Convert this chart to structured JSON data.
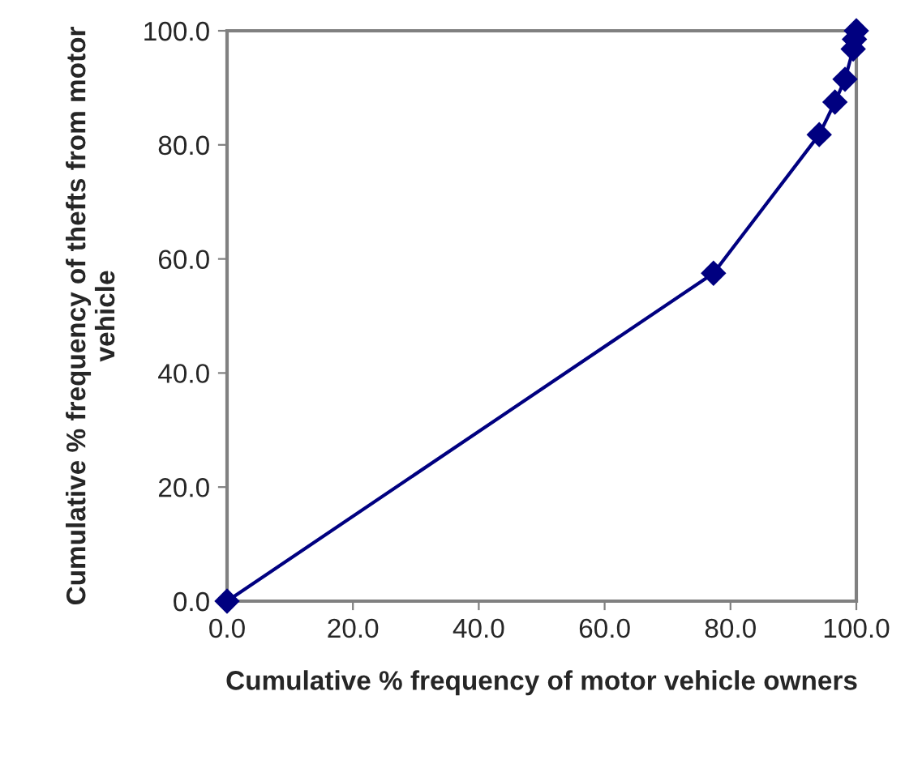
{
  "chart_data": {
    "type": "line",
    "xlabel": "Cumulative % frequency of motor vehicle owners",
    "ylabel": "Cumulative % frequency of thefts from motor vehicle",
    "series": [
      {
        "color": "#000080",
        "x": [
          0,
          77.3,
          94.1,
          96.6,
          98.2,
          99.5,
          99.7,
          100
        ],
        "values": [
          0,
          57.5,
          81.8,
          87.5,
          91.5,
          96.8,
          98.5,
          100
        ]
      }
    ],
    "xlim": [
      0,
      100
    ],
    "ylim": [
      0,
      100
    ],
    "xticks": [
      {
        "value": 0,
        "label": "0.0"
      },
      {
        "value": 20,
        "label": "20.0"
      },
      {
        "value": 40,
        "label": "40.0"
      },
      {
        "value": 60,
        "label": "60.0"
      },
      {
        "value": 80,
        "label": "80.0"
      },
      {
        "value": 100,
        "label": "100.0"
      }
    ],
    "yticks": [
      {
        "value": 0,
        "label": "0.0"
      },
      {
        "value": 20,
        "label": "20.0"
      },
      {
        "value": 40,
        "label": "40.0"
      },
      {
        "value": 60,
        "label": "60.0"
      },
      {
        "value": 80,
        "label": "80.0"
      },
      {
        "value": 100,
        "label": "100.0"
      }
    ],
    "marker": "diamond",
    "line_style": "solid",
    "grid": false,
    "legend": false
  }
}
